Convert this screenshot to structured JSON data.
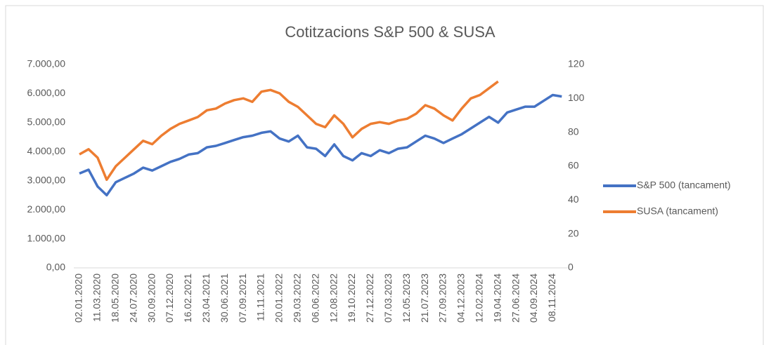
{
  "chart_data": {
    "type": "line",
    "title": "Cotitzacions S&P 500 & SUSA",
    "categories": [
      "02.01.2020",
      null,
      "11.03.2020",
      null,
      "18.05.2020",
      null,
      "24.07.2020",
      null,
      "30.09.2020",
      null,
      "07.12.2020",
      null,
      "16.02.2021",
      null,
      "23.04.2021",
      null,
      "30.06.2021",
      null,
      "07.09.2021",
      null,
      "11.11.2021",
      null,
      "20.01.2022",
      null,
      "29.03.2022",
      null,
      "06.06.2022",
      null,
      "12.08.2022",
      null,
      "19.10.2022",
      null,
      "27.12.2022",
      null,
      "07.03.2023",
      null,
      "12.05.2023",
      null,
      "21.07.2023",
      null,
      "27.09.2023",
      null,
      "04.12.2023",
      null,
      "12.02.2024",
      null,
      "19.04.2024",
      null,
      "27.06.2024",
      null,
      "04.09.2024",
      null,
      "08.11.2024",
      null
    ],
    "series": [
      {
        "name": "S&P 500 (tancament)",
        "color": "#4472c4",
        "axis": "y",
        "values": [
          3250,
          3380,
          2800,
          2500,
          2950,
          3100,
          3250,
          3450,
          3350,
          3500,
          3650,
          3750,
          3900,
          3950,
          4150,
          4200,
          4300,
          4400,
          4500,
          4550,
          4650,
          4700,
          4450,
          4350,
          4550,
          4150,
          4100,
          3850,
          4250,
          3850,
          3700,
          3950,
          3850,
          4050,
          3950,
          4100,
          4150,
          4350,
          4550,
          4450,
          4300,
          4450,
          4600,
          4800,
          5000,
          5200,
          5000,
          5350,
          5450,
          5550,
          5550,
          5750,
          5950,
          5900
        ]
      },
      {
        "name": "SUSA (tancament)",
        "color": "#ed7d31",
        "axis": "y2",
        "values": [
          67,
          70,
          65,
          52,
          60,
          65,
          70,
          75,
          73,
          78,
          82,
          85,
          87,
          89,
          93,
          94,
          97,
          99,
          100,
          98,
          104,
          105,
          103,
          98,
          95,
          90,
          85,
          83,
          90,
          85,
          77,
          82,
          85,
          86,
          85,
          87,
          88,
          91,
          96,
          94,
          90,
          87,
          94,
          100,
          102,
          106,
          110,
          null,
          null,
          null,
          null,
          null,
          null,
          null
        ]
      }
    ],
    "ylim": [
      0,
      7000
    ],
    "yticks": [
      {
        "value": 0,
        "label": "0,00"
      },
      {
        "value": 1000,
        "label": "1.000,00"
      },
      {
        "value": 2000,
        "label": "2.000,00"
      },
      {
        "value": 3000,
        "label": "3.000,00"
      },
      {
        "value": 4000,
        "label": "4.000,00"
      },
      {
        "value": 5000,
        "label": "5.000,00"
      },
      {
        "value": 6000,
        "label": "6.000,00"
      },
      {
        "value": 7000,
        "label": "7.000,00"
      }
    ],
    "y2lim": [
      0,
      120
    ],
    "y2ticks": [
      0,
      20,
      40,
      60,
      80,
      100,
      120
    ],
    "legend": "right"
  }
}
